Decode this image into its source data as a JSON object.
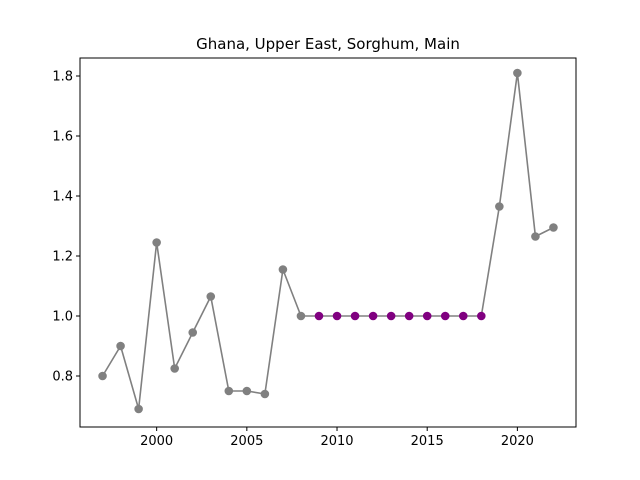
{
  "chart_data": {
    "type": "line",
    "title": "Ghana, Upper East, Sorghum, Main",
    "xlabel": "",
    "ylabel": "",
    "xlim": [
      1995.75,
      2023.25
    ],
    "ylim": [
      0.63,
      1.86
    ],
    "xticks": [
      2000,
      2005,
      2010,
      2015,
      2020
    ],
    "yticks": [
      0.8,
      1.0,
      1.2,
      1.4,
      1.6,
      1.8
    ],
    "grid": false,
    "x": [
      1997,
      1998,
      1999,
      2000,
      2001,
      2002,
      2003,
      2004,
      2005,
      2006,
      2007,
      2008,
      2009,
      2010,
      2011,
      2012,
      2013,
      2014,
      2015,
      2016,
      2017,
      2018,
      2019,
      2020,
      2021,
      2022
    ],
    "y": [
      0.8,
      0.9,
      0.69,
      1.245,
      0.825,
      0.945,
      1.065,
      0.75,
      0.75,
      0.74,
      1.155,
      1.0,
      1.0,
      1.0,
      1.0,
      1.0,
      1.0,
      1.0,
      1.0,
      1.0,
      1.0,
      1.0,
      1.365,
      1.81,
      1.265,
      1.295
    ],
    "highlighted_x": [
      2009,
      2010,
      2011,
      2012,
      2013,
      2014,
      2015,
      2016,
      2017,
      2018
    ],
    "colors": {
      "line": "#808080",
      "point": "#808080",
      "highlight": "#800080",
      "axes": "#000000"
    }
  }
}
